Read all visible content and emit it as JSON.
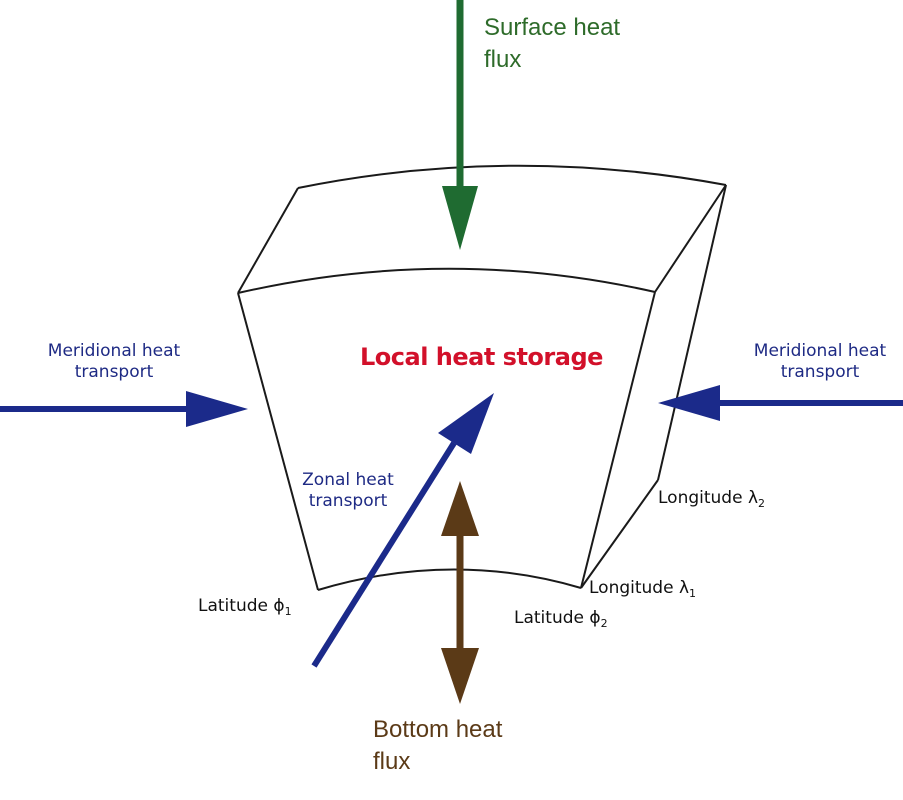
{
  "labels": {
    "surface": {
      "line1": "Surface heat",
      "line2": "flux"
    },
    "bottom": {
      "line1": "Bottom heat",
      "line2": "flux"
    },
    "storage": "Local heat storage",
    "meridional_left": {
      "line1": "Meridional heat",
      "line2": "transport"
    },
    "meridional_right": {
      "line1": "Meridional heat",
      "line2": "transport"
    },
    "zonal": {
      "line1": "Zonal heat",
      "line2": "transport"
    },
    "lon2": {
      "text": "Longitude",
      "symbol": "λ",
      "sub": "2"
    },
    "lon1": {
      "text": "Longitude",
      "symbol": "λ",
      "sub": "1"
    },
    "lat1": {
      "text": "Latitude",
      "symbol": "ϕ",
      "sub": "1"
    },
    "lat2": {
      "text": "Latitude",
      "symbol": "ϕ",
      "sub": "2"
    }
  },
  "colors": {
    "surface_arrow": "#1f6b31",
    "bottom_arrow": "#5b3a17",
    "transport_arrow": "#1b2a8a",
    "storage_text": "#d2102a",
    "box_outline": "#1a1a1a"
  }
}
